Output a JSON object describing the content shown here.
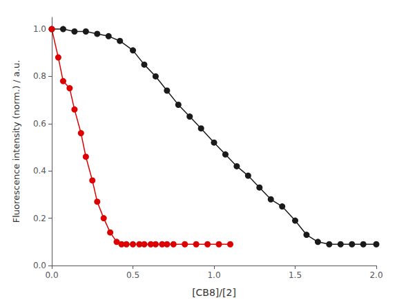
{
  "chart_data": {
    "type": "line",
    "xlabel": "[CB8]/[2]",
    "ylabel": "Fluorescence intensity (norm.) / a.u.",
    "xlim": [
      0.0,
      2.0
    ],
    "ylim": [
      0.0,
      1.05
    ],
    "xticks": [
      {
        "value": 0.0,
        "label": "0.0"
      },
      0.5,
      {
        "value": 1.0,
        "label": "1.0"
      },
      1.5,
      {
        "value": 2.0,
        "label": "2.0"
      }
    ],
    "yticks": [
      {
        "value": 0.0,
        "label": "0.0"
      },
      0.2,
      0.4,
      0.6,
      0.8,
      {
        "value": 1.0,
        "label": "1.0"
      }
    ],
    "grid": false,
    "series": [
      {
        "color": "#1a1a1a",
        "x": [
          0.0,
          0.07,
          0.14,
          0.21,
          0.28,
          0.35,
          0.42,
          0.5,
          0.57,
          0.64,
          0.71,
          0.78,
          0.85,
          0.92,
          1.0,
          1.07,
          1.14,
          1.21,
          1.28,
          1.35,
          1.42,
          1.5,
          1.57,
          1.64,
          1.71,
          1.78,
          1.85,
          1.92,
          2.0
        ],
        "values": [
          1.0,
          1.0,
          0.99,
          0.99,
          0.98,
          0.97,
          0.95,
          0.91,
          0.85,
          0.8,
          0.74,
          0.68,
          0.63,
          0.58,
          0.52,
          0.47,
          0.42,
          0.38,
          0.33,
          0.28,
          0.25,
          0.19,
          0.13,
          0.1,
          0.09,
          0.09,
          0.09,
          0.09,
          0.09
        ]
      },
      {
        "color": "#dd0000",
        "x": [
          0.0,
          0.04,
          0.07,
          0.11,
          0.14,
          0.18,
          0.21,
          0.25,
          0.28,
          0.32,
          0.36,
          0.4,
          0.43,
          0.46,
          0.5,
          0.54,
          0.57,
          0.61,
          0.64,
          0.68,
          0.71,
          0.75,
          0.82,
          0.89,
          0.96,
          1.03,
          1.1
        ],
        "values": [
          1.0,
          0.88,
          0.78,
          0.75,
          0.66,
          0.56,
          0.46,
          0.36,
          0.27,
          0.2,
          0.14,
          0.1,
          0.09,
          0.09,
          0.09,
          0.09,
          0.09,
          0.09,
          0.09,
          0.09,
          0.09,
          0.09,
          0.09,
          0.09,
          0.09,
          0.09,
          0.09
        ]
      }
    ]
  }
}
